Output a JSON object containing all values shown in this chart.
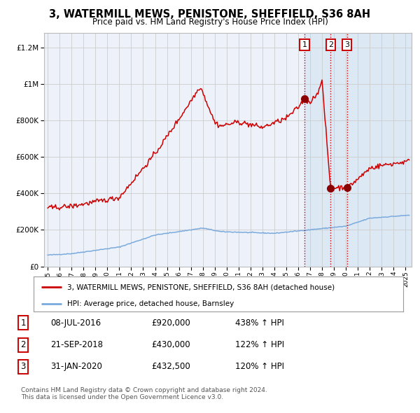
{
  "title": "3, WATERMILL MEWS, PENISTONE, SHEFFIELD, S36 8AH",
  "subtitle": "Price paid vs. HM Land Registry's House Price Index (HPI)",
  "legend_line1": "3, WATERMILL MEWS, PENISTONE, SHEFFIELD, S36 8AH (detached house)",
  "legend_line2": "HPI: Average price, detached house, Barnsley",
  "transactions": [
    {
      "label": "1",
      "date": "08-JUL-2016",
      "price": 920000,
      "pct": "438%",
      "x_year": 2016.52
    },
    {
      "label": "2",
      "date": "21-SEP-2018",
      "price": 430000,
      "pct": "122%",
      "x_year": 2018.72
    },
    {
      "label": "3",
      "date": "31-JAN-2020",
      "price": 432500,
      "pct": "120%",
      "x_year": 2020.08
    }
  ],
  "footer1": "Contains HM Land Registry data © Crown copyright and database right 2024.",
  "footer2": "This data is licensed under the Open Government Licence v3.0.",
  "hpi_color": "#7aaadd",
  "price_color": "#cc0000",
  "dot_color": "#8b0000",
  "highlight_bg": "#dde8f5",
  "plot_bg": "#edf2fa",
  "grid_color": "#cccccc",
  "ylim": [
    0,
    1280000
  ],
  "xlim_start": 1994.7,
  "xlim_end": 2025.5
}
